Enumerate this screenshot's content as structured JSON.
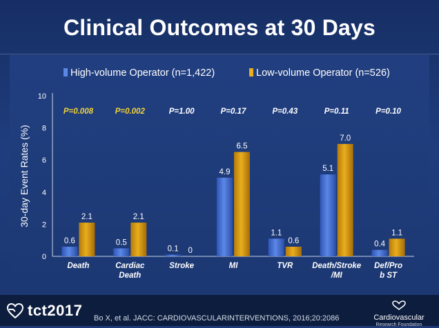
{
  "slide": {
    "title": "Clinical Outcomes at 30 Days",
    "citation": "Bo X, et al. JACC: CARDIOVASCULARINTERVENTIONS, 2016;20:2086",
    "logo_left": "tct2017",
    "logo_right_name": "Cardiovascular",
    "logo_right_sub": "Research Foundation"
  },
  "colors": {
    "series_high": "#5b87e6",
    "series_low": "#e9ae1d",
    "pvalue_sig": "#f0d23a",
    "pvalue_ns": "#ffffff"
  },
  "chart_data": {
    "type": "bar",
    "ylabel": "30-day Event Rates (%)",
    "ylim": [
      0,
      10
    ],
    "yticks": [
      0,
      2,
      4,
      6,
      8,
      10
    ],
    "categories": [
      [
        "Death"
      ],
      [
        "Cardiac",
        "Death"
      ],
      [
        "Stroke"
      ],
      [
        "MI"
      ],
      [
        "TVR"
      ],
      [
        "Death/Stroke",
        "/MI"
      ],
      [
        "Def/Pro",
        "b ST"
      ]
    ],
    "series": [
      {
        "name": "High-volume Operator (n=1,422)",
        "values": [
          0.6,
          0.5,
          0.1,
          4.9,
          1.1,
          5.1,
          0.4
        ],
        "labels": [
          "0.6",
          "0.5",
          "0.1",
          "4.9",
          "1.1",
          "5.1",
          "0.4"
        ]
      },
      {
        "name": "Low-volume Operator (n=526)",
        "values": [
          2.1,
          2.1,
          0,
          6.5,
          0.6,
          7.0,
          1.1
        ],
        "labels": [
          "2.1",
          "2.1",
          "0",
          "6.5",
          "0.6",
          "7.0",
          "1.1"
        ]
      }
    ],
    "pvalues": [
      "P=0.008",
      "P=0.002",
      "P=1.00",
      "P=0.17",
      "P=0.43",
      "P=0.11",
      "P=0.10"
    ],
    "pvalue_significant": [
      true,
      true,
      false,
      false,
      false,
      false,
      false
    ],
    "legend_position": "top",
    "grid": false
  }
}
